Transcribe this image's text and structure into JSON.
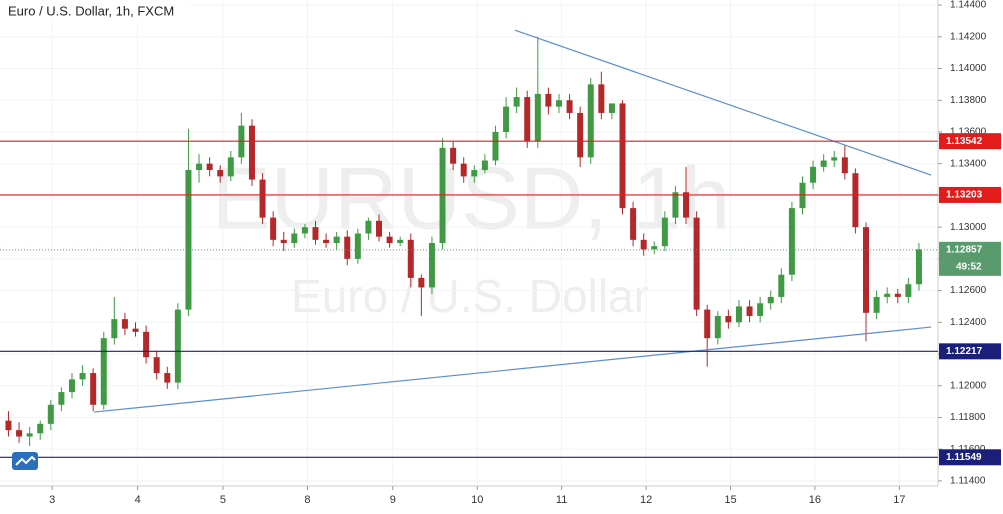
{
  "chart_data": {
    "type": "candlestick",
    "title": "Euro / U.S. Dollar, 1h, FXCM",
    "watermark": "EURUSD, 1h",
    "watermark_subtitle": "Euro / U.S. Dollar",
    "up_color": "#3f9a43",
    "down_color": "#b4282a",
    "ylim": [
      1.11368,
      1.14432
    ],
    "xlim": [
      -0.8,
      87.8
    ],
    "yticks": [
      {
        "value": 1.114,
        "label": "1.11400"
      },
      {
        "value": 1.116,
        "label": "1.11600"
      },
      {
        "value": 1.118,
        "label": "1.11800"
      },
      {
        "value": 1.12,
        "label": "1.12000"
      },
      {
        "value": 1.122,
        "label": "1.12200"
      },
      {
        "value": 1.124,
        "label": "1.12400"
      },
      {
        "value": 1.126,
        "label": "1.12600"
      },
      {
        "value": 1.128,
        "label": "1.12800"
      },
      {
        "value": 1.13,
        "label": "1.13000"
      },
      {
        "value": 1.132,
        "label": "1.13200"
      },
      {
        "value": 1.134,
        "label": "1.13400"
      },
      {
        "value": 1.136,
        "label": "1.13600"
      },
      {
        "value": 1.138,
        "label": "1.13800"
      },
      {
        "value": 1.14,
        "label": "1.14000"
      },
      {
        "value": 1.142,
        "label": "1.14200"
      },
      {
        "value": 1.144,
        "label": "1.14400"
      }
    ],
    "xticks": [
      {
        "value": 4.13,
        "label": "3"
      },
      {
        "value": 12.2,
        "label": "4"
      },
      {
        "value": 20.26,
        "label": "5"
      },
      {
        "value": 28.24,
        "label": "8"
      },
      {
        "value": 36.3,
        "label": "9"
      },
      {
        "value": 44.28,
        "label": "10"
      },
      {
        "value": 52.25,
        "label": "11"
      },
      {
        "value": 60.23,
        "label": "12"
      },
      {
        "value": 68.2,
        "label": "15"
      },
      {
        "value": 76.17,
        "label": "16"
      },
      {
        "value": 84.15,
        "label": "17"
      }
    ],
    "open": [
      1.1178,
      1.1172,
      1.1168,
      1.117,
      1.1176,
      1.1188,
      1.1196,
      1.1204,
      1.1208,
      1.1188,
      1.123,
      1.1242,
      1.1236,
      1.1234,
      1.1218,
      1.1208,
      1.1202,
      1.1248,
      1.1336,
      1.134,
      1.1336,
      1.1332,
      1.1344,
      1.1364,
      1.133,
      1.1306,
      1.1292,
      1.129,
      1.1296,
      1.13,
      1.1292,
      1.129,
      1.1294,
      1.128,
      1.1296,
      1.1304,
      1.1294,
      1.129,
      1.1292,
      1.1268,
      1.1262,
      1.129,
      1.135,
      1.134,
      1.1332,
      1.1336,
      1.1342,
      1.136,
      1.1376,
      1.1382,
      1.1354,
      1.1384,
      1.1376,
      1.138,
      1.1372,
      1.1344,
      1.139,
      1.1372,
      1.1378,
      1.1312,
      1.1292,
      1.1286,
      1.1288,
      1.1306,
      1.1322,
      1.1306,
      1.1248,
      1.123,
      1.1244,
      1.124,
      1.125,
      1.1244,
      1.1252,
      1.1256,
      1.127,
      1.1312,
      1.1328,
      1.1338,
      1.1342,
      1.1344,
      1.1334,
      1.13,
      1.1246,
      1.1256,
      1.1258,
      1.1256,
      1.1264
    ],
    "high": [
      1.1184,
      1.1177,
      1.1174,
      1.1178,
      1.1191,
      1.1199,
      1.1208,
      1.1213,
      1.1211,
      1.1234,
      1.1256,
      1.1246,
      1.124,
      1.1238,
      1.1222,
      1.1212,
      1.1252,
      1.1362,
      1.1346,
      1.1344,
      1.1339,
      1.1348,
      1.1372,
      1.1368,
      1.1334,
      1.131,
      1.1297,
      1.1299,
      1.1302,
      1.1304,
      1.1296,
      1.1297,
      1.1298,
      1.1299,
      1.1306,
      1.1308,
      1.1297,
      1.1294,
      1.1296,
      1.127,
      1.1294,
      1.1356,
      1.1354,
      1.1344,
      1.1339,
      1.1346,
      1.1364,
      1.1382,
      1.1388,
      1.1386,
      1.142,
      1.1388,
      1.1384,
      1.1384,
      1.1376,
      1.1394,
      1.1398,
      1.1377,
      1.138,
      1.1316,
      1.1296,
      1.1291,
      1.131,
      1.1326,
      1.1338,
      1.131,
      1.1251,
      1.1247,
      1.1248,
      1.1254,
      1.1254,
      1.1256,
      1.126,
      1.1274,
      1.1316,
      1.1332,
      1.1342,
      1.1346,
      1.1348,
      1.1352,
      1.1337,
      1.1303,
      1.126,
      1.1262,
      1.1261,
      1.1268,
      1.129
    ],
    "low": [
      1.1168,
      1.1164,
      1.1162,
      1.1166,
      1.1172,
      1.1184,
      1.1192,
      1.12,
      1.1184,
      1.1185,
      1.1226,
      1.1232,
      1.1231,
      1.1214,
      1.1204,
      1.1198,
      1.1198,
      1.1244,
      1.1328,
      1.1332,
      1.1328,
      1.1329,
      1.134,
      1.1326,
      1.1302,
      1.1288,
      1.1285,
      1.1287,
      1.1293,
      1.1289,
      1.1287,
      1.1286,
      1.1276,
      1.1277,
      1.1292,
      1.1291,
      1.1287,
      1.1288,
      1.1262,
      1.1244,
      1.1258,
      1.1286,
      1.1336,
      1.1328,
      1.1328,
      1.1334,
      1.1339,
      1.1356,
      1.1372,
      1.135,
      1.135,
      1.1371,
      1.1372,
      1.1368,
      1.1338,
      1.134,
      1.1368,
      1.1368,
      1.1308,
      1.1288,
      1.1282,
      1.1283,
      1.1285,
      1.1302,
      1.1302,
      1.1244,
      1.1212,
      1.1226,
      1.1236,
      1.1237,
      1.124,
      1.124,
      1.1248,
      1.1252,
      1.1266,
      1.1308,
      1.1324,
      1.1335,
      1.1338,
      1.133,
      1.1296,
      1.1228,
      1.1242,
      1.1252,
      1.1252,
      1.1252,
      1.126
    ],
    "close": [
      1.1172,
      1.1168,
      1.117,
      1.1176,
      1.1188,
      1.1196,
      1.1204,
      1.1208,
      1.1188,
      1.123,
      1.1242,
      1.1236,
      1.1234,
      1.1218,
      1.1208,
      1.1202,
      1.1248,
      1.1336,
      1.134,
      1.1336,
      1.1332,
      1.1344,
      1.1364,
      1.133,
      1.1306,
      1.1292,
      1.129,
      1.1296,
      1.13,
      1.1292,
      1.129,
      1.1294,
      1.128,
      1.1296,
      1.1304,
      1.1294,
      1.129,
      1.1292,
      1.1268,
      1.1262,
      1.129,
      1.135,
      1.134,
      1.1332,
      1.1336,
      1.1342,
      1.136,
      1.1376,
      1.1382,
      1.1354,
      1.1384,
      1.1376,
      1.138,
      1.1372,
      1.1344,
      1.139,
      1.1372,
      1.1378,
      1.1312,
      1.1292,
      1.1286,
      1.1288,
      1.1306,
      1.1322,
      1.1306,
      1.1248,
      1.123,
      1.1244,
      1.124,
      1.125,
      1.1244,
      1.1252,
      1.1256,
      1.127,
      1.1312,
      1.1328,
      1.1338,
      1.1342,
      1.1344,
      1.1334,
      1.13,
      1.1246,
      1.1256,
      1.1258,
      1.1256,
      1.1264,
      1.1286
    ],
    "levels": [
      {
        "value": 1.13542,
        "color": "#e31b1b"
      },
      {
        "value": 1.13203,
        "color": "#e31b1b"
      },
      {
        "value": 1.12217,
        "color": "#1a1f7a"
      },
      {
        "value": 1.11549,
        "color": "#1a1f7a"
      }
    ],
    "last_price": {
      "value": 1.12857,
      "color": "#5a9b6e",
      "countdown": "49:52"
    },
    "trendlines": [
      {
        "x": [
          47.84,
          87.15
        ],
        "y": [
          1.14242,
          1.13328
        ],
        "color": "#5b8fd0"
      },
      {
        "x": [
          8.07,
          87.15
        ],
        "y": [
          1.11834,
          1.1237
        ],
        "color": "#5b8fd0"
      }
    ]
  }
}
